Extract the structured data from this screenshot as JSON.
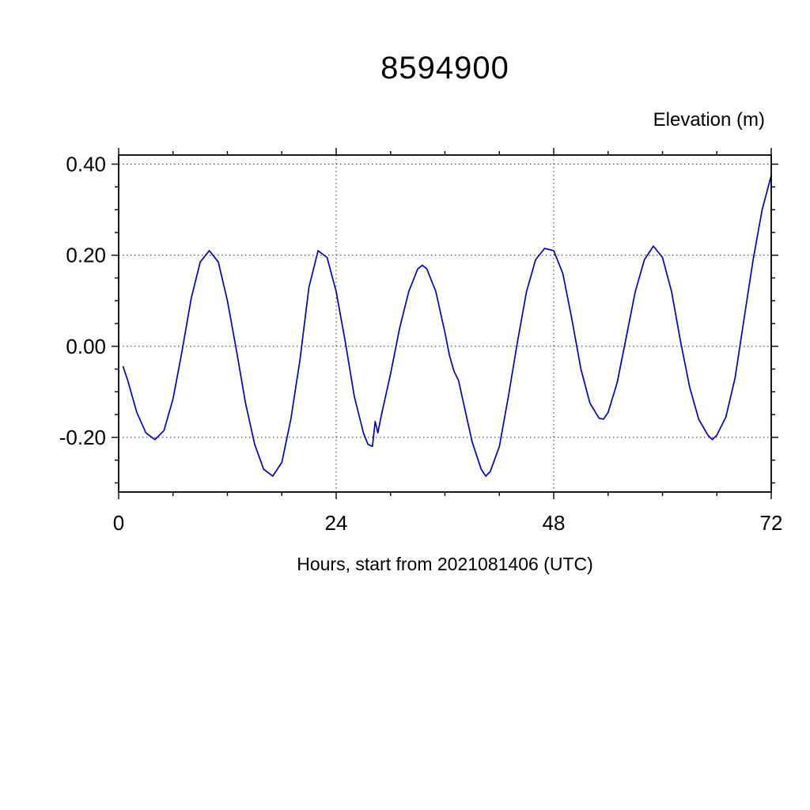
{
  "page": {
    "background": "#ffffff",
    "text_color": "#000000"
  },
  "chart_data": {
    "type": "line",
    "title": "8594900",
    "ylabel": "Elevation (m)",
    "xlabel": "Hours, start from 2021081406 (UTC)",
    "xlim": [
      0,
      72
    ],
    "ylim": [
      -0.32,
      0.42
    ],
    "xticks": [
      0,
      24,
      48,
      72
    ],
    "xtick_labels": [
      "0",
      "24",
      "48",
      "72"
    ],
    "xgrid": [
      24,
      48
    ],
    "xminor_step": 6,
    "yticks": [
      -0.2,
      0,
      0.2,
      0.4
    ],
    "ytick_labels": [
      "-0.20",
      "0.00",
      "0.20",
      "0.40"
    ],
    "yminor_step": 0.05,
    "grid": true,
    "grid_style": "dotted",
    "legend": "none",
    "line_color": "#0000cc",
    "series": [
      {
        "name": "elevation",
        "x": [
          0.5,
          1,
          2,
          3,
          4,
          5,
          6,
          7,
          8,
          9,
          10,
          11,
          12,
          13,
          14,
          15,
          16,
          17,
          18,
          19,
          20,
          21,
          22,
          23,
          24,
          25,
          26,
          27,
          27.5,
          28,
          28.3,
          28.6,
          29,
          30,
          31,
          32,
          33,
          33.5,
          34,
          35,
          36,
          36.5,
          37,
          37.5,
          38,
          39,
          40,
          40.5,
          41,
          42,
          43,
          44,
          45,
          46,
          47,
          48,
          49,
          50,
          51,
          52,
          53,
          53.5,
          54,
          55,
          56,
          57,
          58,
          59,
          60,
          61,
          62,
          63,
          64,
          65,
          65.5,
          66,
          67,
          68,
          69,
          70,
          71,
          72
        ],
        "y": [
          -0.045,
          -0.075,
          -0.145,
          -0.19,
          -0.205,
          -0.185,
          -0.115,
          -0.01,
          0.105,
          0.185,
          0.21,
          0.185,
          0.1,
          -0.01,
          -0.125,
          -0.215,
          -0.27,
          -0.285,
          -0.255,
          -0.16,
          -0.03,
          0.13,
          0.21,
          0.195,
          0.12,
          0.01,
          -0.11,
          -0.19,
          -0.215,
          -0.22,
          -0.165,
          -0.19,
          -0.15,
          -0.06,
          0.04,
          0.12,
          0.17,
          0.178,
          0.17,
          0.12,
          0.03,
          -0.02,
          -0.055,
          -0.075,
          -0.12,
          -0.21,
          -0.27,
          -0.285,
          -0.275,
          -0.22,
          -0.11,
          0.01,
          0.12,
          0.19,
          0.215,
          0.21,
          0.16,
          0.06,
          -0.05,
          -0.125,
          -0.158,
          -0.16,
          -0.145,
          -0.08,
          0.02,
          0.12,
          0.19,
          0.22,
          0.195,
          0.12,
          0.01,
          -0.09,
          -0.16,
          -0.195,
          -0.205,
          -0.195,
          -0.155,
          -0.07,
          0.06,
          0.19,
          0.3,
          0.375
        ]
      }
    ]
  }
}
